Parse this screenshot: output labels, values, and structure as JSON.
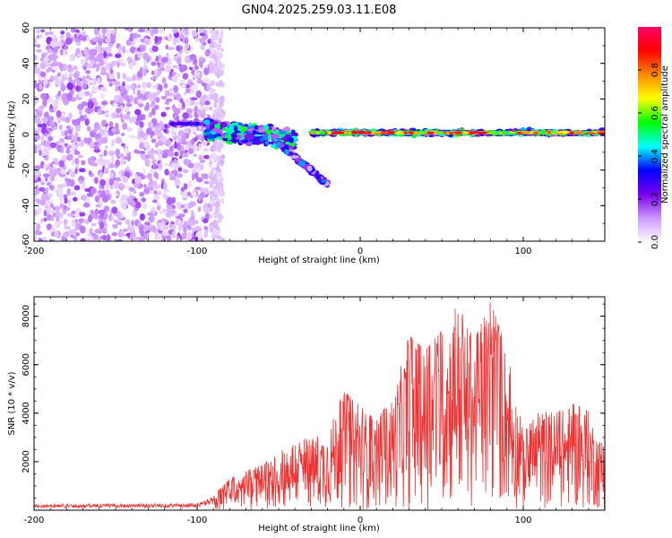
{
  "title": "GN04.2025.259.03.11.E08",
  "chart_data": [
    {
      "type": "heatmap",
      "name": "spectrogram",
      "xlabel": "Height of straight line (km)",
      "ylabel": "Frequency (Hz)",
      "xlim": [
        -200,
        150
      ],
      "ylim": [
        -60,
        60
      ],
      "xticks": [
        -200,
        -100,
        0,
        100
      ],
      "xtick_labels": [
        "-200",
        "-100",
        "0",
        "100"
      ],
      "yticks": [
        -60,
        -40,
        -20,
        0,
        20,
        40,
        60
      ],
      "ytick_labels": [
        "-60",
        "-40",
        "-20",
        "0",
        "20",
        "40",
        "60"
      ],
      "colorbar": {
        "label": "Normalized spectral amplitude",
        "range": [
          0,
          1
        ],
        "ticks": [
          0.0,
          0.2,
          0.4,
          0.6,
          0.8
        ],
        "tick_labels": [
          "0.0",
          "0.2",
          "0.4",
          "0.6",
          "0.8"
        ],
        "colors": [
          "#ffffff",
          "#cc99ff",
          "#7700ee",
          "#0000ff",
          "#00ffff",
          "#00ff00",
          "#ffff00",
          "#ff8800",
          "#ff0000",
          "#ff0066"
        ]
      },
      "features": [
        {
          "description": "broadband noise",
          "x_range": [
            -200,
            -92
          ],
          "y_range": [
            -60,
            60
          ],
          "amplitude": 0.12
        },
        {
          "description": "signal onset",
          "x_range": [
            -115,
            -95
          ],
          "freq_hz": 6,
          "amplitude": 0.35
        },
        {
          "description": "scattered branch",
          "x_range": [
            -95,
            -40
          ],
          "freq_hz": [
            -2,
            8
          ],
          "amplitude": 0.4
        },
        {
          "description": "descending branch",
          "x_range": [
            -50,
            -20
          ],
          "freq_hz": [
            -5,
            -28
          ],
          "amplitude": 0.3
        },
        {
          "description": "steady tone",
          "x_range": [
            -30,
            150
          ],
          "freq_hz": 1,
          "amplitude": 0.9
        }
      ]
    },
    {
      "type": "line",
      "name": "snr",
      "xlabel": "Height of straight line (km)",
      "ylabel": "SNR (10 * v/v)",
      "xlim": [
        -200,
        150
      ],
      "ylim": [
        0,
        8800
      ],
      "xticks": [
        -200,
        -100,
        0,
        100
      ],
      "xtick_labels": [
        "-200",
        "-100",
        "0",
        "100"
      ],
      "yticks": [
        2000,
        4000,
        6000,
        8000
      ],
      "ytick_labels": [
        "2000",
        "4000",
        "6000",
        "8000"
      ],
      "color": "#ee3333",
      "envelope": {
        "x": [
          -200,
          -100,
          -90,
          -80,
          -70,
          -60,
          -50,
          -40,
          -30,
          -20,
          -10,
          0,
          10,
          20,
          30,
          40,
          50,
          60,
          70,
          80,
          90,
          100,
          110,
          120,
          130,
          140,
          150
        ],
        "y": [
          250,
          280,
          600,
          1300,
          1600,
          1900,
          2300,
          3000,
          2900,
          3300,
          4900,
          4300,
          3700,
          4700,
          7200,
          6600,
          7400,
          8500,
          7000,
          8600,
          6600,
          3200,
          4100,
          4000,
          4400,
          4100,
          2500
        ]
      }
    }
  ]
}
